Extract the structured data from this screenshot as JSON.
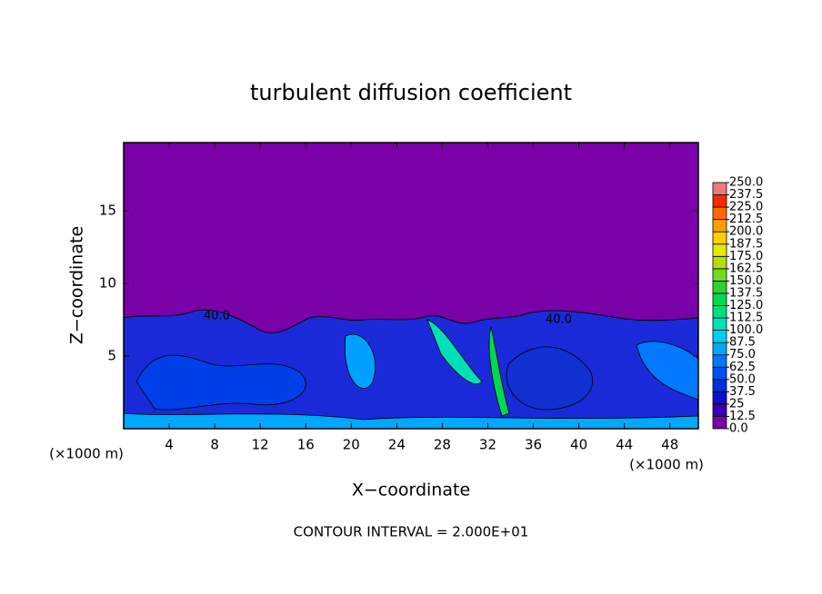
{
  "chart_data": {
    "type": "contour",
    "title": "turbulent diffusion coefficient",
    "x_label": "X−coordinate",
    "y_label": "Z−coordinate",
    "x_unit": "(×1000 m)",
    "xlim": [
      0,
      50.5
    ],
    "xticks": [
      4,
      8,
      12,
      16,
      20,
      24,
      28,
      32,
      36,
      40,
      44,
      48
    ],
    "ylim": [
      0,
      19.7
    ],
    "yticks": [
      5,
      10,
      15
    ],
    "contour_labels": [
      "40.0",
      "40.0"
    ],
    "footer": "CONTOUR INTERVAL = 2.000E+01",
    "colorbar": {
      "levels": [
        {
          "value": 0,
          "label": "0.0"
        },
        12.5,
        25,
        37.5,
        {
          "value": 50,
          "label": "50.0"
        },
        62.5,
        {
          "value": 75,
          "label": "75.0"
        },
        87.5,
        {
          "value": 100,
          "label": "100.0"
        },
        112.5,
        {
          "value": 125,
          "label": "125.0"
        },
        137.5,
        {
          "value": 150,
          "label": "150.0"
        },
        162.5,
        {
          "value": 175,
          "label": "175.0"
        },
        187.5,
        {
          "value": 200,
          "label": "200.0"
        },
        212.5,
        {
          "value": 225,
          "label": "225.0"
        },
        237.5,
        {
          "value": 250,
          "label": "250.0"
        }
      ],
      "colors": [
        "#7a00a8",
        "#3a00b0",
        "#1010c8",
        "#0030dc",
        "#0050f0",
        "#0078ff",
        "#00a8ff",
        "#00d0f0",
        "#00e0b8",
        "#00e080",
        "#00d850",
        "#30d030",
        "#70dc20",
        "#b0e000",
        "#e8e800",
        "#ffd000",
        "#ffa000",
        "#ff6a00",
        "#ff2800",
        "#f07878"
      ]
    }
  }
}
